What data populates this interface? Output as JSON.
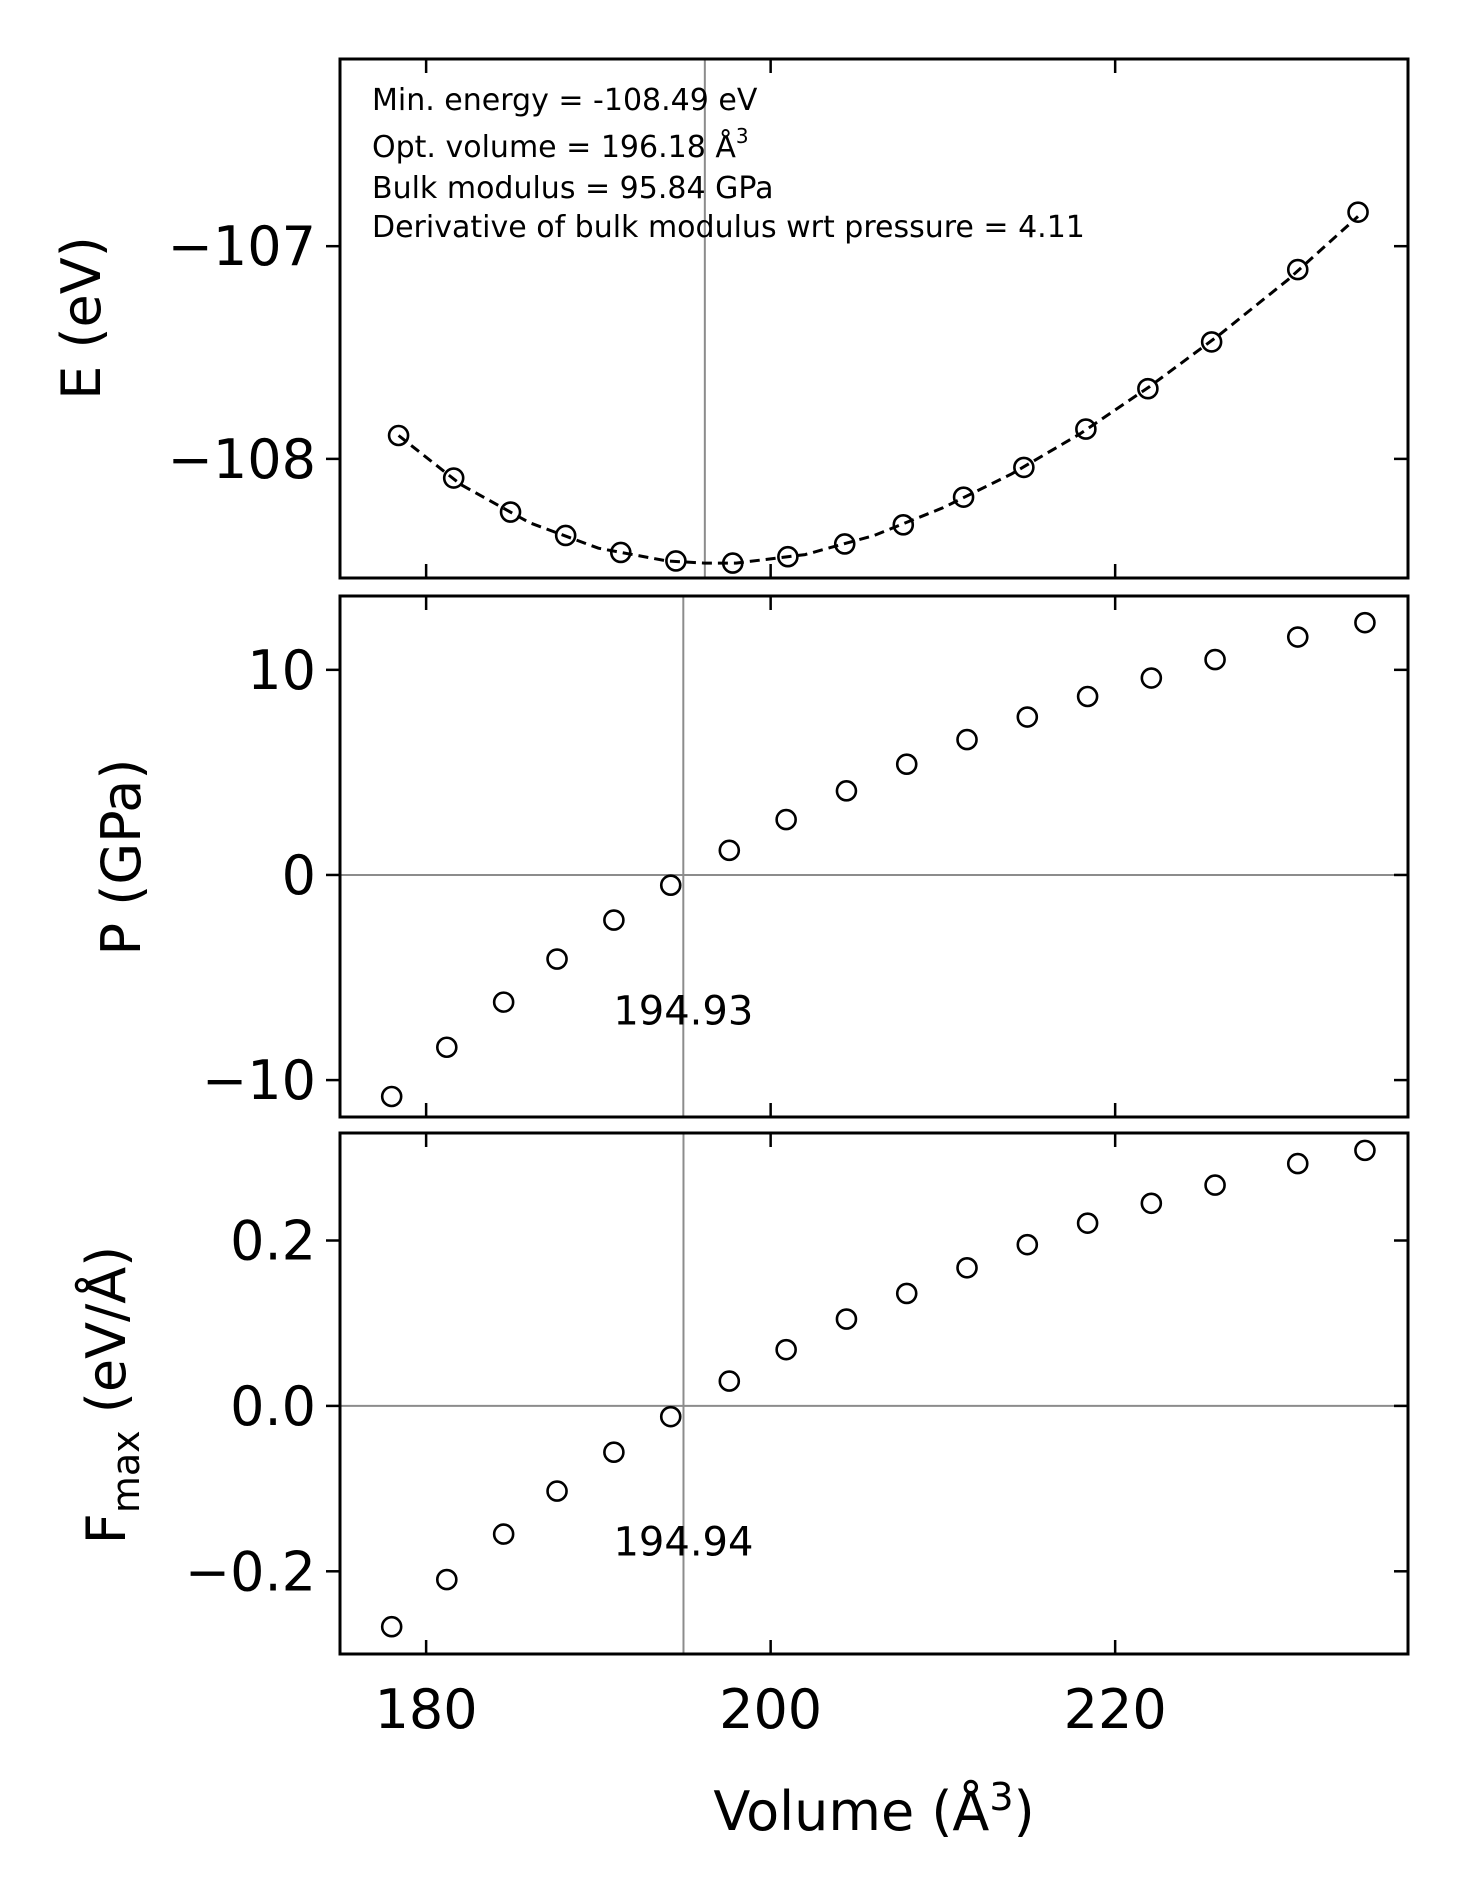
{
  "chart_data": [
    {
      "id": "energy",
      "type": "scatter",
      "ylabel": "E (eV)",
      "xlim": [
        175,
        237
      ],
      "ylim": [
        -108.56,
        -106.12
      ],
      "yticks": [
        -108,
        -107
      ],
      "ytick_labels": [
        "−108",
        "−107"
      ],
      "series": [
        {
          "name": "E",
          "x": [
            178.4,
            181.6,
            184.9,
            188.1,
            191.3,
            194.5,
            197.8,
            201.0,
            204.3,
            207.7,
            211.2,
            214.7,
            218.3,
            221.9,
            225.6,
            230.6,
            234.1
          ],
          "values": [
            -107.89,
            -108.09,
            -108.25,
            -108.36,
            -108.44,
            -108.48,
            -108.49,
            -108.46,
            -108.4,
            -108.31,
            -108.18,
            -108.04,
            -107.86,
            -107.67,
            -107.45,
            -107.11,
            -106.84
          ]
        }
      ],
      "fit": {
        "style": "dashed",
        "x": [
          178.4,
          182,
          186,
          190,
          194,
          196.18,
          198,
          202,
          206,
          210,
          214,
          218,
          222,
          226,
          230,
          234.1
        ],
        "values": [
          -107.89,
          -108.12,
          -108.3,
          -108.42,
          -108.48,
          -108.49,
          -108.49,
          -108.45,
          -108.36,
          -108.23,
          -108.07,
          -107.88,
          -107.66,
          -107.42,
          -107.16,
          -106.86
        ]
      },
      "vline_x": 196.18,
      "annotations": [
        "Min. energy = -108.49 eV",
        "Opt. volume = 196.18 Å",
        "Bulk modulus = 95.84 GPa",
        "Derivative of bulk modulus wrt pressure = 4.11"
      ],
      "annotation_superscript": "3"
    },
    {
      "id": "pressure",
      "type": "scatter",
      "ylabel": "P (GPa)",
      "xlim": [
        175,
        237
      ],
      "ylim": [
        -11.8,
        13.6
      ],
      "yticks": [
        -10,
        0,
        10
      ],
      "ytick_labels": [
        "−10",
        "0",
        "10"
      ],
      "series": [
        {
          "name": "P",
          "x": [
            178.0,
            181.2,
            184.5,
            187.6,
            190.9,
            194.2,
            197.6,
            200.9,
            204.4,
            207.9,
            211.4,
            214.9,
            218.4,
            222.1,
            225.8,
            230.6,
            234.5
          ],
          "values": [
            -10.8,
            -8.4,
            -6.2,
            -4.1,
            -2.2,
            -0.5,
            1.2,
            2.7,
            4.1,
            5.4,
            6.6,
            7.7,
            8.7,
            9.6,
            10.5,
            11.6,
            12.3
          ]
        }
      ],
      "hline_y": 0,
      "vline_x": 194.93,
      "vline_label": "194.93",
      "vline_label_y": -7.3
    },
    {
      "id": "force",
      "type": "scatter",
      "ylabel": "F",
      "ylabel_sub": "max",
      "ylabel_unit": " (eV/Å)",
      "xlim": [
        175,
        237
      ],
      "ylim": [
        -0.3,
        0.33
      ],
      "yticks": [
        -0.2,
        0.0,
        0.2
      ],
      "ytick_labels": [
        "−0.2",
        "0.0",
        "0.2"
      ],
      "series": [
        {
          "name": "Fmax",
          "x": [
            178.0,
            181.2,
            184.5,
            187.6,
            190.9,
            194.2,
            197.6,
            200.9,
            204.4,
            207.9,
            211.4,
            214.9,
            218.4,
            222.1,
            225.8,
            230.6,
            234.5
          ],
          "values": [
            -0.267,
            -0.21,
            -0.155,
            -0.103,
            -0.056,
            -0.013,
            0.03,
            0.068,
            0.105,
            0.136,
            0.167,
            0.195,
            0.221,
            0.245,
            0.267,
            0.293,
            0.309
          ]
        }
      ],
      "hline_y": 0,
      "vline_x": 194.94,
      "vline_label": "194.94",
      "vline_label_y": -0.181,
      "xticks": [
        180,
        200,
        220
      ],
      "xtick_labels": [
        "180",
        "200",
        "220"
      ],
      "xlabel": "Volume (Å",
      "xlabel_superscript": "3",
      "xlabel_suffix": ")"
    }
  ]
}
